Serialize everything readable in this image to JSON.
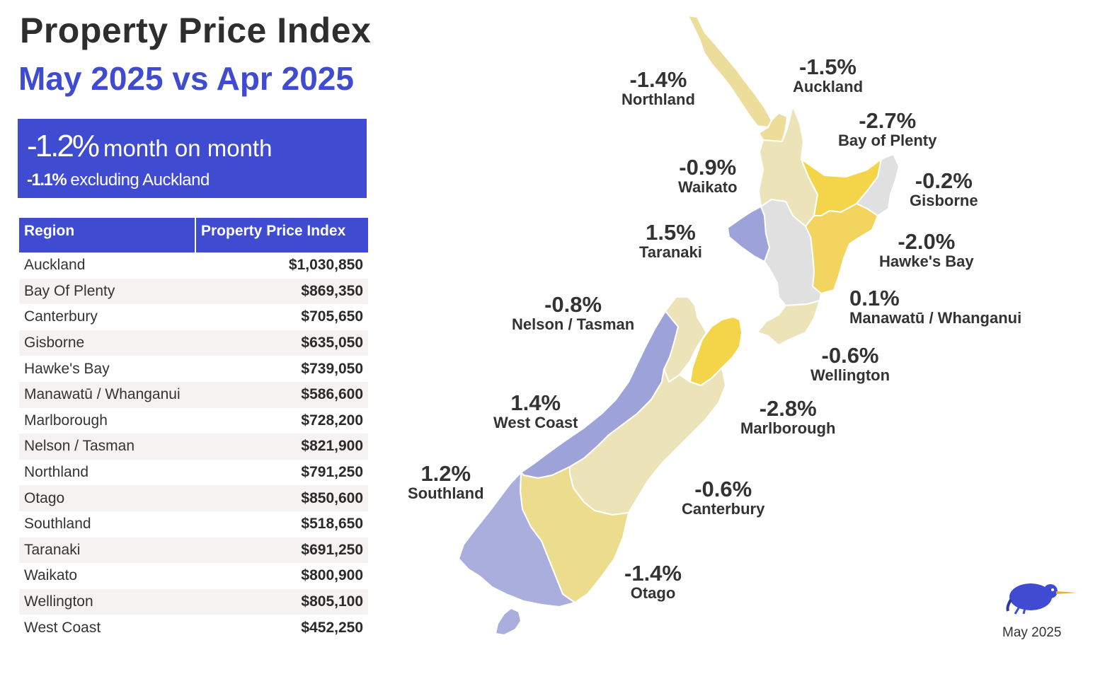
{
  "header": {
    "title": "Property Price Index",
    "subtitle": "May 2025 vs Apr 2025"
  },
  "summary": {
    "headline_pct": "-1.2%",
    "headline_label": "month on month",
    "excl_pct": "-1.1%",
    "excl_label": "excluding Auckland"
  },
  "table": {
    "headers": [
      "Region",
      "Property Price Index"
    ],
    "rows": [
      [
        "Auckland",
        "$1,030,850"
      ],
      [
        "Bay Of Plenty",
        "$869,350"
      ],
      [
        "Canterbury",
        "$705,650"
      ],
      [
        "Gisborne",
        "$635,050"
      ],
      [
        "Hawke's Bay",
        "$739,050"
      ],
      [
        "Manawatū / Whanganui",
        "$586,600"
      ],
      [
        "Marlborough",
        "$728,200"
      ],
      [
        "Nelson / Tasman",
        "$821,900"
      ],
      [
        "Northland",
        "$791,250"
      ],
      [
        "Otago",
        "$850,600"
      ],
      [
        "Southland",
        "$518,650"
      ],
      [
        "Taranaki",
        "$691,250"
      ],
      [
        "Waikato",
        "$800,900"
      ],
      [
        "Wellington",
        "$805,100"
      ],
      [
        "West Coast",
        "$452,250"
      ]
    ]
  },
  "map": {
    "regions": [
      {
        "name": "Northland",
        "change": "-1.4%",
        "color": "#ecdd9b"
      },
      {
        "name": "Auckland",
        "change": "-1.5%",
        "color": "#ecdd9b"
      },
      {
        "name": "Bay of Plenty",
        "change": "-2.7%",
        "color": "#f4d54a"
      },
      {
        "name": "Waikato",
        "change": "-0.9%",
        "color": "#ece3b8"
      },
      {
        "name": "Gisborne",
        "change": "-0.2%",
        "color": "#e0e0e0"
      },
      {
        "name": "Taranaki",
        "change": "1.5%",
        "color": "#9da3d9"
      },
      {
        "name": "Hawke's Bay",
        "change": "-2.0%",
        "color": "#f2d45e"
      },
      {
        "name": "Manawatū / Whanganui",
        "change": "0.1%",
        "color": "#e0e0e0"
      },
      {
        "name": "Nelson / Tasman",
        "change": "-0.8%",
        "color": "#ece3b8"
      },
      {
        "name": "Wellington",
        "change": "-0.6%",
        "color": "#ece3b8"
      },
      {
        "name": "West Coast",
        "change": "1.4%",
        "color": "#9da3d9"
      },
      {
        "name": "Marlborough",
        "change": "-2.8%",
        "color": "#f4d54a"
      },
      {
        "name": "Southland",
        "change": "1.2%",
        "color": "#a9aedc"
      },
      {
        "name": "Canterbury",
        "change": "-0.6%",
        "color": "#ece3b8"
      },
      {
        "name": "Otago",
        "change": "-1.4%",
        "color": "#ecdd8e"
      }
    ]
  },
  "logo": {
    "icon": "kiwi-bird-icon",
    "date": "May 2025"
  }
}
